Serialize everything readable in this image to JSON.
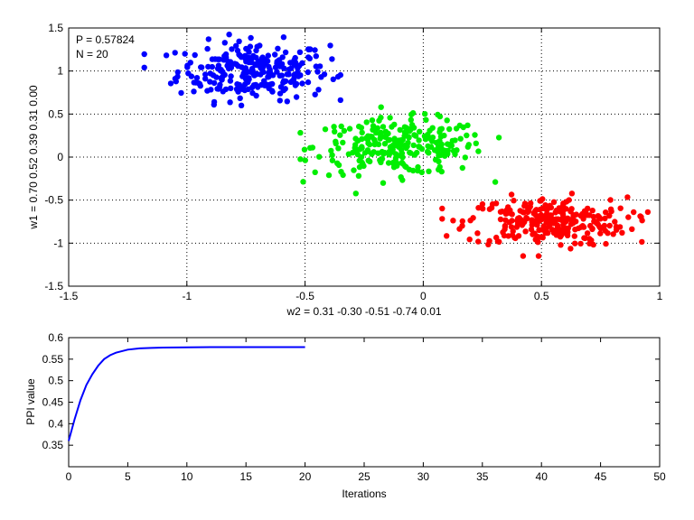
{
  "chart_data": [
    {
      "type": "scatter",
      "xlim": [
        -1.5,
        1
      ],
      "ylim": [
        -1.5,
        1.5
      ],
      "xticks": [
        "-1.5",
        "-1",
        "-0.5",
        "0",
        "0.5",
        "1"
      ],
      "yticks": [
        "-1.5",
        "-1",
        "-0.5",
        "0",
        "0.5",
        "1",
        "1.5"
      ],
      "xlabel": "w2 = 0.31  -0.30  -0.51  -0.74  0.01",
      "ylabel": "w1 = 0.70  0.52  0.39  0.31  0.00",
      "grid": true,
      "annotations": [
        "P = 0.57824",
        "N = 20"
      ],
      "series": [
        {
          "color": "#0000ff",
          "center": [
            -0.72,
            1.0
          ],
          "spread": [
            0.16,
            0.17
          ],
          "count": 260,
          "x_range": [
            -1.18,
            -0.35
          ],
          "y_range": [
            0.6,
            1.45
          ]
        },
        {
          "color": "#00ee00",
          "center": [
            -0.1,
            0.12
          ],
          "spread": [
            0.18,
            0.16
          ],
          "count": 260,
          "x_range": [
            -0.52,
            0.32
          ],
          "y_range": [
            -0.45,
            0.58
          ]
        },
        {
          "color": "#ff0000",
          "center": [
            0.52,
            -0.75
          ],
          "spread": [
            0.17,
            0.14
          ],
          "count": 270,
          "x_range": [
            0.08,
            0.95
          ],
          "y_range": [
            -1.15,
            -0.28
          ]
        }
      ]
    },
    {
      "type": "line",
      "xlim": [
        0,
        50
      ],
      "ylim": [
        0.3,
        0.6
      ],
      "xticks": [
        "0",
        "5",
        "10",
        "15",
        "20",
        "25",
        "30",
        "35",
        "40",
        "45",
        "50"
      ],
      "yticks": [
        "0.35",
        "0.4",
        "0.45",
        "0.5",
        "0.55",
        "0.6"
      ],
      "xlabel": "Iterations",
      "ylabel": "PPI value",
      "grid": false,
      "series": [
        {
          "color": "#0000ff",
          "x": [
            0,
            0.5,
            1,
            1.5,
            2,
            2.5,
            3,
            3.5,
            4,
            5,
            6,
            7,
            8,
            10,
            12,
            14,
            16,
            18,
            20
          ],
          "y": [
            0.36,
            0.41,
            0.455,
            0.49,
            0.515,
            0.535,
            0.55,
            0.559,
            0.565,
            0.572,
            0.575,
            0.576,
            0.577,
            0.5775,
            0.578,
            0.578,
            0.578,
            0.578,
            0.578
          ]
        }
      ]
    }
  ]
}
